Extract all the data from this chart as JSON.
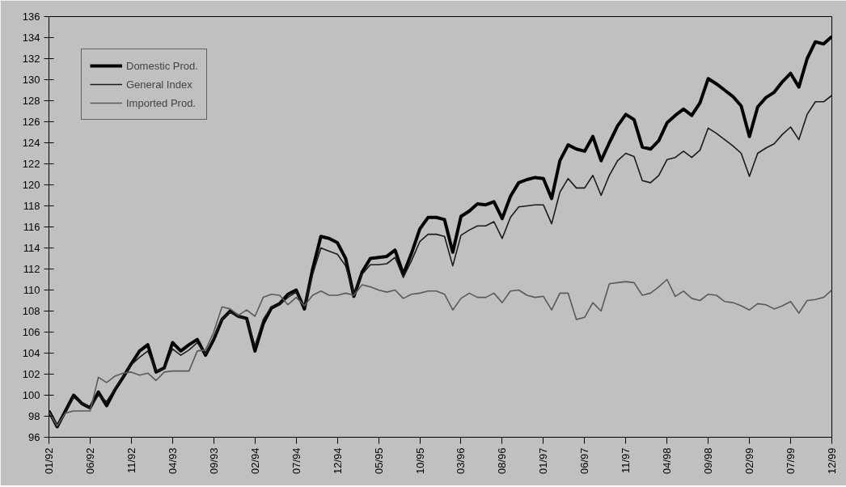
{
  "chart_data": {
    "type": "line",
    "categories": [
      "01/92",
      null,
      null,
      null,
      null,
      "06/92",
      null,
      null,
      null,
      null,
      "11/92",
      null,
      null,
      null,
      null,
      "04/93",
      null,
      null,
      null,
      null,
      "09/93",
      null,
      null,
      null,
      null,
      "02/94",
      null,
      null,
      null,
      null,
      "07/94",
      null,
      null,
      null,
      null,
      "12/94",
      null,
      null,
      null,
      null,
      "05/95",
      null,
      null,
      null,
      null,
      "10/95",
      null,
      null,
      null,
      null,
      "03/96",
      null,
      null,
      null,
      null,
      "08/96",
      null,
      null,
      null,
      null,
      "01/97",
      null,
      null,
      null,
      null,
      "06/97",
      null,
      null,
      null,
      null,
      "11/97",
      null,
      null,
      null,
      null,
      "04/98",
      null,
      null,
      null,
      null,
      "09/98",
      null,
      null,
      null,
      null,
      "02/99",
      null,
      null,
      null,
      null,
      "07/99",
      null,
      null,
      null,
      null,
      "12/99"
    ],
    "series": [
      {
        "name": "Domestic Prod.",
        "color": "#000000",
        "values": [
          98.5,
          97.0,
          98.5,
          100.0,
          99.2,
          98.8,
          100.3,
          99.0,
          100.5,
          101.7,
          103.0,
          104.2,
          104.8,
          102.2,
          102.6,
          105.0,
          104.2,
          104.8,
          105.3,
          103.8,
          105.3,
          107.2,
          108.0,
          107.5,
          107.3,
          104.2,
          106.8,
          108.3,
          108.7,
          109.6,
          110.0,
          108.2,
          112.0,
          115.1,
          114.9,
          114.5,
          113.0,
          109.4,
          111.7,
          113.0,
          113.1,
          113.2,
          113.8,
          111.5,
          113.5,
          115.8,
          116.9,
          116.9,
          116.7,
          113.6,
          117.0,
          117.5,
          118.2,
          118.1,
          118.4,
          116.8,
          118.9,
          120.2,
          120.5,
          120.7,
          120.6,
          118.7,
          122.3,
          123.8,
          123.4,
          123.2,
          124.6,
          122.3,
          124.0,
          125.6,
          126.7,
          126.2,
          123.6,
          123.4,
          124.2,
          125.9,
          126.6,
          127.2,
          126.6,
          127.8,
          130.1,
          129.6,
          129.0,
          128.4,
          127.5,
          124.6,
          127.4,
          128.3,
          128.8,
          129.8,
          130.6,
          129.3,
          132.0,
          133.6,
          133.4,
          134.1
        ]
      },
      {
        "name": "General Index",
        "color": "#1a1a1a",
        "values": [
          98.4,
          97.0,
          98.3,
          99.8,
          99.2,
          98.8,
          100.0,
          99.4,
          100.6,
          101.8,
          102.9,
          103.6,
          104.2,
          102.3,
          102.5,
          104.4,
          103.8,
          104.3,
          105.0,
          103.9,
          105.5,
          107.3,
          107.9,
          107.5,
          107.2,
          104.7,
          107.2,
          108.4,
          108.6,
          109.3,
          109.8,
          108.4,
          111.5,
          114.0,
          113.7,
          113.4,
          112.3,
          109.6,
          111.5,
          112.4,
          112.4,
          112.5,
          113.1,
          111.2,
          112.8,
          114.6,
          115.3,
          115.3,
          115.1,
          112.3,
          115.2,
          115.7,
          116.1,
          116.1,
          116.5,
          114.9,
          116.9,
          117.9,
          118.0,
          118.1,
          118.1,
          116.3,
          119.3,
          120.6,
          119.7,
          119.7,
          120.9,
          119.0,
          120.9,
          122.3,
          123.0,
          122.7,
          120.4,
          120.2,
          120.9,
          122.4,
          122.6,
          123.2,
          122.6,
          123.3,
          125.4,
          124.9,
          124.3,
          123.7,
          123.0,
          120.8,
          123.0,
          123.5,
          123.9,
          124.8,
          125.5,
          124.3,
          126.7,
          127.9,
          127.9,
          128.5
        ]
      },
      {
        "name": "Imported Prod.",
        "color": "#5a5a5a",
        "values": [
          98.4,
          97.1,
          98.3,
          98.5,
          98.5,
          98.5,
          101.7,
          101.2,
          101.8,
          102.1,
          102.2,
          101.9,
          102.1,
          101.4,
          102.2,
          102.3,
          102.3,
          102.3,
          104.2,
          104.3,
          106.0,
          108.4,
          108.2,
          107.6,
          108.1,
          107.5,
          109.3,
          109.6,
          109.5,
          108.6,
          109.3,
          108.5,
          109.5,
          109.9,
          109.5,
          109.5,
          109.7,
          109.5,
          110.5,
          110.3,
          110.0,
          109.8,
          110.0,
          109.2,
          109.6,
          109.7,
          109.9,
          109.9,
          109.6,
          108.1,
          109.2,
          109.7,
          109.3,
          109.3,
          109.7,
          108.8,
          109.9,
          110.0,
          109.5,
          109.3,
          109.4,
          108.1,
          109.7,
          109.7,
          107.2,
          107.4,
          108.8,
          108.0,
          110.6,
          110.7,
          110.8,
          110.7,
          109.5,
          109.7,
          110.3,
          111.0,
          109.4,
          109.9,
          109.2,
          109.0,
          109.6,
          109.5,
          108.9,
          108.8,
          108.5,
          108.1,
          108.7,
          108.6,
          108.2,
          108.5,
          108.9,
          107.8,
          109.0,
          109.1,
          109.3,
          110.0
        ]
      }
    ],
    "ylim": [
      96,
      136
    ],
    "yticks": [
      96,
      98,
      100,
      102,
      104,
      106,
      108,
      110,
      112,
      114,
      116,
      118,
      120,
      122,
      124,
      126,
      128,
      130,
      132,
      134,
      136
    ],
    "grid": false,
    "legend": "top left",
    "marker": "none",
    "line_style": "solid"
  }
}
